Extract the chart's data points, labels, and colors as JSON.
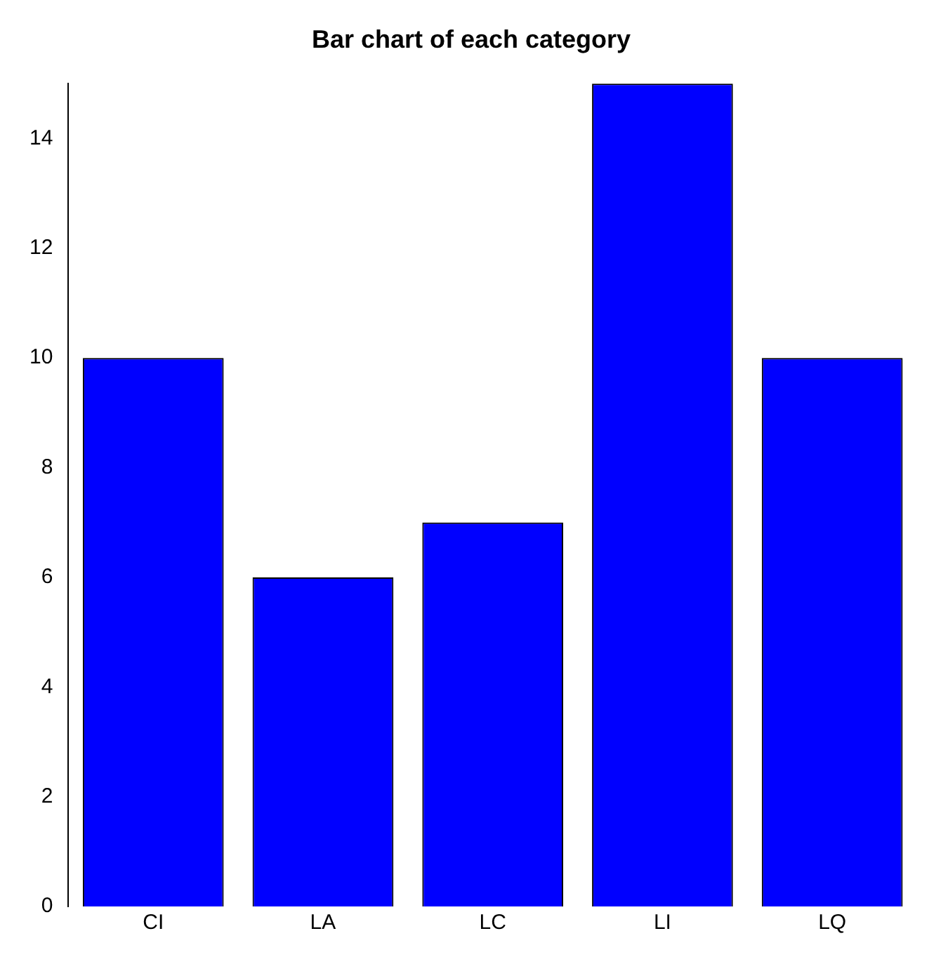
{
  "chart_data": {
    "type": "bar",
    "title": "Bar chart of each category",
    "categories": [
      "CI",
      "LA",
      "LC",
      "LI",
      "LQ"
    ],
    "values": [
      10,
      6,
      7,
      15,
      10
    ],
    "color": "#0000ff",
    "ylim": [
      0,
      15
    ],
    "yticks": [
      0,
      2,
      4,
      6,
      8,
      10,
      12,
      14
    ],
    "grid": false,
    "legend": false
  }
}
